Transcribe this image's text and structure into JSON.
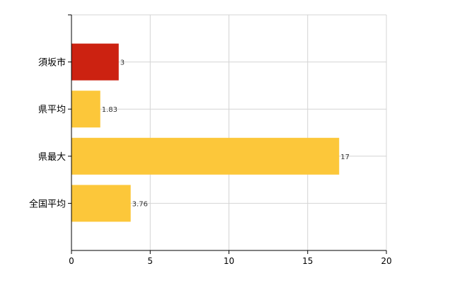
{
  "chart_data": {
    "type": "bar",
    "orientation": "horizontal",
    "categories": [
      "須坂市",
      "県平均",
      "県最大",
      "全国平均"
    ],
    "values": [
      3,
      1.83,
      17,
      3.76
    ],
    "data_labels": [
      "3",
      "1.83",
      "17",
      "3.76"
    ],
    "bar_colors": [
      "#cc2211",
      "#fcc73a",
      "#fcc73a",
      "#fcc73a"
    ],
    "xlim": [
      0,
      20
    ],
    "x_ticks": [
      0,
      5,
      10,
      15,
      20
    ],
    "x_tick_labels": [
      "0",
      "5",
      "10",
      "15",
      "20"
    ],
    "grid": true,
    "grid_color": "#d4d4d4",
    "title": "",
    "xlabel": "",
    "ylabel": ""
  }
}
